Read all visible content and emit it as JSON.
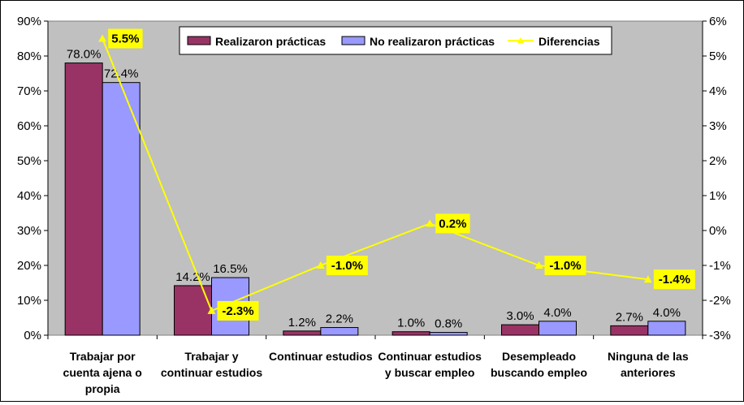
{
  "chart_data": {
    "type": "bar",
    "categories": [
      [
        "Trabajar por",
        "cuenta ajena o",
        "propia"
      ],
      [
        "Trabajar y",
        "continuar estudios"
      ],
      [
        "Continuar estudios"
      ],
      [
        "Continuar estudios",
        "y buscar empleo"
      ],
      [
        "Desempleado",
        "buscando empleo"
      ],
      [
        "Ninguna de las",
        "anteriores"
      ]
    ],
    "series": [
      {
        "name": "Realizaron prácticas",
        "values": [
          78.0,
          14.2,
          1.2,
          1.0,
          3.0,
          2.7
        ],
        "labels": [
          "78.0%",
          "14.2%",
          "1.2%",
          "1.0%",
          "3.0%",
          "2.7%"
        ],
        "color": "#993366",
        "axis": "left"
      },
      {
        "name": "No realizaron prácticas",
        "values": [
          72.4,
          16.5,
          2.2,
          0.8,
          4.0,
          4.0
        ],
        "labels": [
          "72.4%",
          "16.5%",
          "2.2%",
          "0.8%",
          "4.0%",
          "4.0%"
        ],
        "color": "#9999ff",
        "axis": "left"
      },
      {
        "name": "Diferencias",
        "type": "line",
        "values": [
          5.5,
          -2.3,
          -1.0,
          0.2,
          -1.0,
          -1.4
        ],
        "labels": [
          "5.5%",
          "-2.3%",
          "-1.0%",
          "0.2%",
          "-1.0%",
          "-1.4%"
        ],
        "color": "#ffff00",
        "axis": "right"
      }
    ],
    "ylim": [
      0,
      90
    ],
    "y_ticks": [
      "0%",
      "10%",
      "20%",
      "30%",
      "40%",
      "50%",
      "60%",
      "70%",
      "80%",
      "90%"
    ],
    "y2lim": [
      -3,
      6
    ],
    "y2_ticks": [
      "-3%",
      "-2%",
      "-1%",
      "0%",
      "1%",
      "2%",
      "3%",
      "4%",
      "5%",
      "6%"
    ],
    "plot_background": "#c0c0c0",
    "grid": false,
    "legend_position": "top"
  }
}
